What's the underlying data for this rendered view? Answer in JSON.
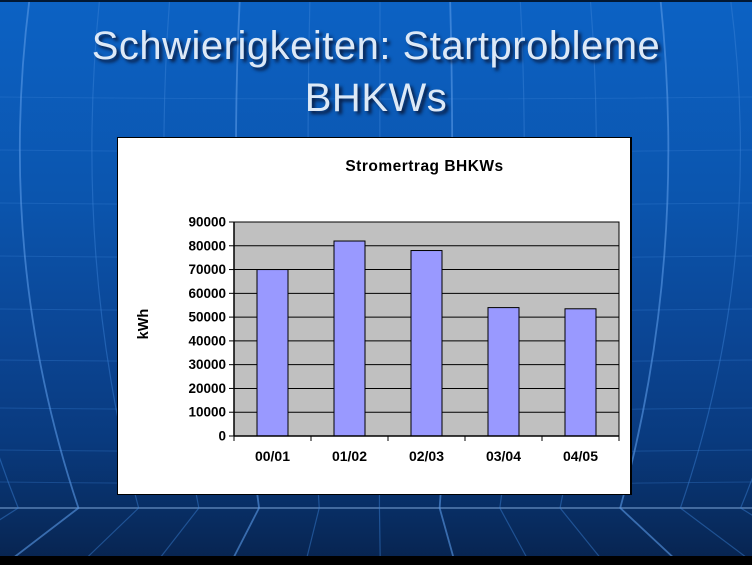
{
  "slide": {
    "title_line1": "Schwierigkeiten: Startprobleme",
    "title_line2": "BHKWs"
  },
  "chart_data": {
    "type": "bar",
    "title": "Stromertrag BHKWs",
    "categories": [
      "00/01",
      "01/02",
      "02/03",
      "03/04",
      "04/05"
    ],
    "values": [
      70000,
      82000,
      78000,
      54000,
      53500
    ],
    "xlabel": "",
    "ylabel": "kWh",
    "ylim": [
      0,
      90000
    ],
    "ytick_step": 10000,
    "grid": true,
    "legend_position": "none",
    "bar_color": "#9999ff",
    "bar_border_color": "#000000",
    "plot_bg_color": "#c0c0c0",
    "axis_color": "#000000",
    "text_color": "#000000"
  },
  "colors": {
    "slide_bg_top": "#0c62c4",
    "slide_bg_bottom": "#07234e",
    "globe_line": "#3c82d7",
    "globe_line_bright": "#5a9ae6",
    "horizon_line": "#8cb4e6",
    "title_text": "#dde9f7",
    "panel_bg": "#ffffff"
  }
}
